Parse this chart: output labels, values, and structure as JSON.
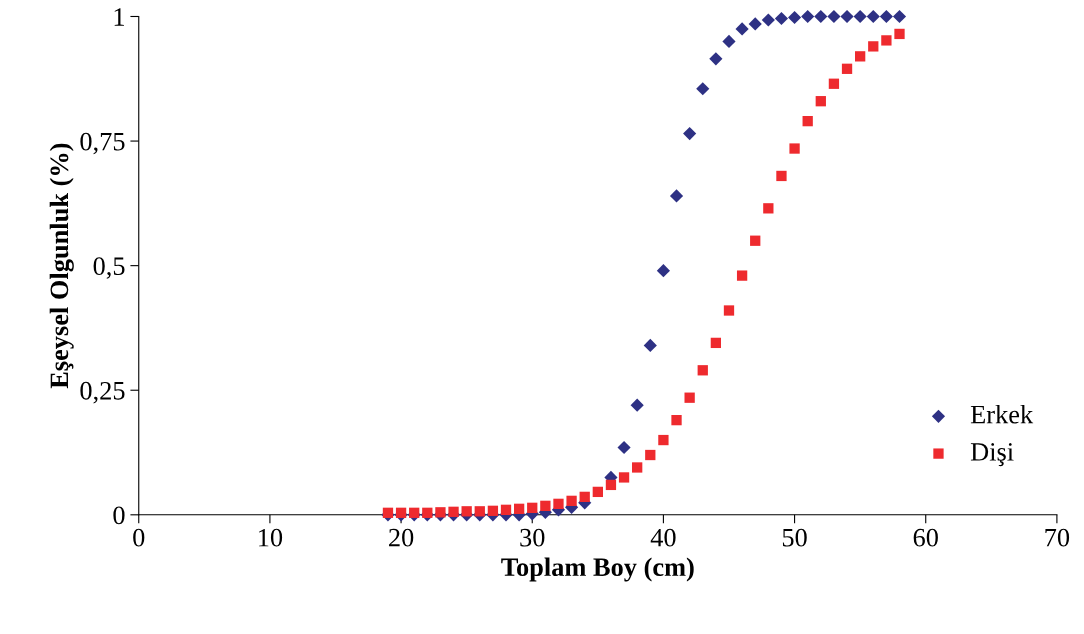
{
  "chart_data": {
    "type": "scatter",
    "xlabel": "Toplam Boy (cm)",
    "ylabel": "Eşeysel Olgunluk (%)",
    "xlim": [
      0,
      70
    ],
    "xticks": [
      0,
      10,
      20,
      30,
      40,
      50,
      60,
      70
    ],
    "ylim": [
      0,
      1
    ],
    "yticks": [
      0,
      {
        "value": 0.25,
        "label": "0,25"
      },
      {
        "value": 0.5,
        "label": "0,5"
      },
      {
        "value": 0.75,
        "label": "0,75"
      },
      1
    ],
    "grid": false,
    "legend": "lower right",
    "x": [
      19,
      20,
      21,
      22,
      23,
      24,
      25,
      26,
      27,
      28,
      29,
      30,
      31,
      32,
      33,
      34,
      35,
      36,
      37,
      38,
      39,
      40,
      41,
      42,
      43,
      44,
      45,
      46,
      47,
      48,
      49,
      50,
      51,
      52,
      53,
      54,
      55,
      56,
      57,
      58
    ],
    "series": [
      {
        "name": "Erkek",
        "color": "#2e3184",
        "marker": "diamond",
        "values": [
          0,
          0,
          0,
          0,
          0,
          0,
          0,
          0,
          0,
          0,
          0,
          0.002,
          0.005,
          0.01,
          0.015,
          0.024,
          null,
          0.075,
          0.135,
          0.22,
          0.34,
          0.49,
          0.64,
          0.765,
          0.855,
          0.915,
          0.95,
          0.975,
          0.985,
          0.993,
          0.996,
          0.998,
          1,
          1,
          1,
          1,
          1,
          1,
          1,
          1
        ]
      },
      {
        "name": "Dişi",
        "color": "#ee2a2e",
        "marker": "square",
        "values": [
          0.004,
          0.004,
          0.004,
          0.004,
          0.005,
          0.006,
          0.007,
          0.007,
          0.008,
          0.01,
          0.012,
          0.014,
          0.018,
          0.022,
          0.028,
          0.036,
          0.046,
          0.06,
          0.075,
          0.095,
          0.12,
          0.15,
          0.19,
          0.235,
          0.29,
          0.345,
          0.41,
          0.48,
          0.55,
          0.615,
          0.68,
          0.735,
          0.79,
          0.83,
          0.865,
          0.895,
          0.92,
          0.94,
          0.952,
          0.965
        ]
      }
    ]
  }
}
